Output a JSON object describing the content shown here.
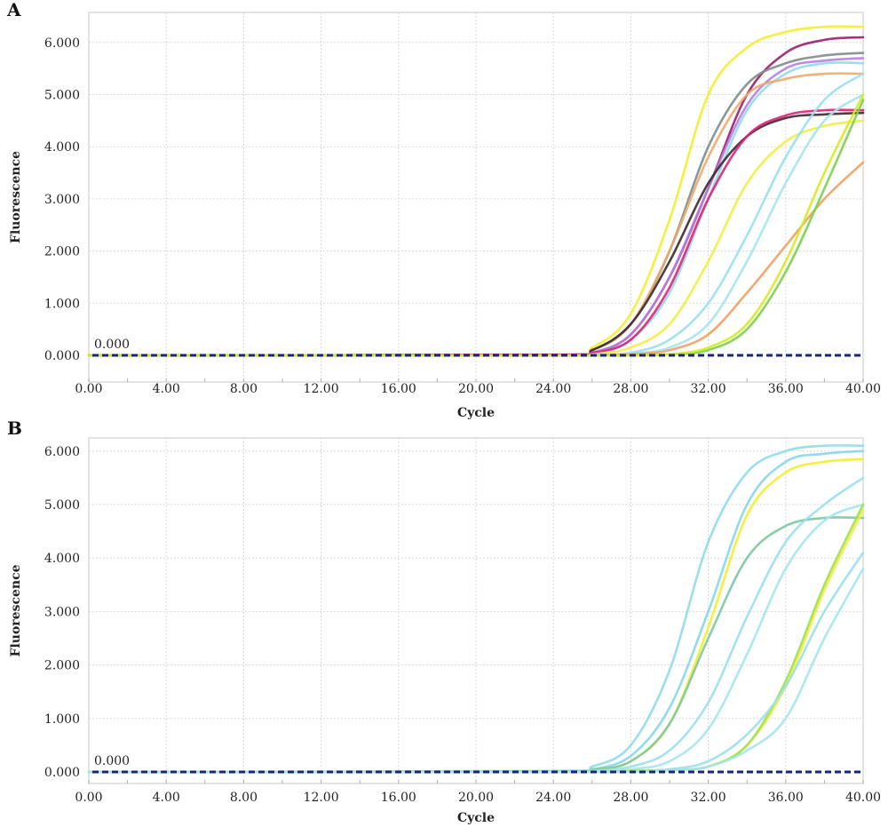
{
  "chart_data": [
    {
      "type": "line",
      "panel_label": "A",
      "xlabel": "Cycle",
      "ylabel": "Fluorescence",
      "xlim": [
        0,
        40
      ],
      "ylim": [
        0,
        6.3
      ],
      "x_ticks": [
        "0.00",
        "4.00",
        "8.00",
        "12.00",
        "16.00",
        "20.00",
        "24.00",
        "28.00",
        "32.00",
        "36.00",
        "40.00"
      ],
      "y_ticks": [
        "0.000",
        "1.000",
        "2.000",
        "3.000",
        "4.000",
        "5.000",
        "6.000"
      ],
      "grid": true,
      "threshold": {
        "value": 0,
        "label": "0.000",
        "color": "#1a237e",
        "style": "dashed"
      },
      "x": [
        0,
        24,
        26,
        28,
        30,
        32,
        34,
        36,
        38,
        40
      ],
      "series": [
        {
          "color": "#f2ee2a",
          "values": [
            0,
            0.02,
            0.15,
            0.8,
            2.6,
            5.0,
            5.9,
            6.2,
            6.3,
            6.3
          ]
        },
        {
          "color": "#9a1f6e",
          "values": [
            0,
            0.01,
            0.05,
            0.4,
            1.5,
            3.2,
            5.0,
            5.8,
            6.05,
            6.1
          ]
        },
        {
          "color": "#7f8c8c",
          "values": [
            0,
            0.01,
            0.1,
            0.6,
            2.0,
            4.0,
            5.2,
            5.6,
            5.75,
            5.8
          ]
        },
        {
          "color": "#b77fe2",
          "values": [
            0,
            0.01,
            0.05,
            0.4,
            1.5,
            3.2,
            4.8,
            5.5,
            5.65,
            5.7
          ]
        },
        {
          "color": "#8fdcea",
          "values": [
            0,
            0.01,
            0.05,
            0.3,
            1.2,
            3.0,
            4.7,
            5.4,
            5.6,
            5.6
          ]
        },
        {
          "color": "#f0a868",
          "values": [
            0,
            0.01,
            0.1,
            0.6,
            2.0,
            3.8,
            5.0,
            5.3,
            5.4,
            5.4
          ]
        },
        {
          "color": "#3a2a2e",
          "values": [
            0,
            0.01,
            0.1,
            0.6,
            1.8,
            3.3,
            4.2,
            4.55,
            4.62,
            4.65
          ]
        },
        {
          "color": "#e0207a",
          "values": [
            0,
            0.01,
            0.05,
            0.3,
            1.3,
            3.0,
            4.2,
            4.6,
            4.7,
            4.7
          ]
        },
        {
          "color": "#eef040",
          "values": [
            0,
            0,
            0.02,
            0.15,
            0.6,
            1.8,
            3.3,
            4.1,
            4.4,
            4.5
          ]
        },
        {
          "color": "#9ae0ec",
          "values": [
            0,
            0,
            0.01,
            0.05,
            0.3,
            1.0,
            2.3,
            3.8,
            4.9,
            5.4
          ]
        },
        {
          "color": "#a4e4ee",
          "values": [
            0,
            0,
            0,
            0.03,
            0.15,
            0.6,
            1.8,
            3.3,
            4.5,
            5.0
          ]
        },
        {
          "color": "#f0a060",
          "values": [
            0,
            0,
            0,
            0.02,
            0.1,
            0.4,
            1.2,
            2.1,
            3.0,
            3.7
          ]
        },
        {
          "color": "#7ad04a",
          "values": [
            0,
            0,
            0,
            0,
            0.02,
            0.1,
            0.5,
            1.6,
            3.2,
            4.9
          ]
        },
        {
          "color": "#d4ec20",
          "values": [
            0,
            0,
            0,
            0,
            0.02,
            0.15,
            0.6,
            1.8,
            3.5,
            5.0
          ]
        }
      ]
    },
    {
      "type": "line",
      "panel_label": "B",
      "xlabel": "Cycle",
      "ylabel": "Fluorescence",
      "xlim": [
        0,
        40
      ],
      "ylim": [
        0,
        6.25
      ],
      "x_ticks": [
        "0.00",
        "4.00",
        "8.00",
        "12.00",
        "16.00",
        "20.00",
        "24.00",
        "28.00",
        "32.00",
        "36.00",
        "40.00"
      ],
      "y_ticks": [
        "0.000",
        "1.000",
        "2.000",
        "3.000",
        "4.000",
        "5.000",
        "6.000"
      ],
      "grid": true,
      "threshold": {
        "value": 0,
        "label": "0.000",
        "color": "#1a237e",
        "style": "dashed"
      },
      "x": [
        0,
        24,
        26,
        28,
        30,
        32,
        34,
        36,
        38,
        40
      ],
      "series": [
        {
          "color": "#8fdcea",
          "values": [
            0,
            0.02,
            0.1,
            0.5,
            1.9,
            4.3,
            5.6,
            6.0,
            6.1,
            6.1
          ]
        },
        {
          "color": "#86d6ee",
          "values": [
            0,
            0.01,
            0.05,
            0.3,
            1.2,
            3.0,
            5.0,
            5.8,
            5.95,
            6.0
          ]
        },
        {
          "color": "#f2ee2a",
          "values": [
            0,
            0.01,
            0.04,
            0.2,
            0.9,
            2.7,
            4.8,
            5.6,
            5.8,
            5.85
          ]
        },
        {
          "color": "#7cc8a0",
          "values": [
            0,
            0.01,
            0.04,
            0.2,
            0.9,
            2.5,
            4.0,
            4.6,
            4.75,
            4.75
          ]
        },
        {
          "color": "#9ae0ec",
          "values": [
            0,
            0,
            0.02,
            0.1,
            0.4,
            1.3,
            2.9,
            4.3,
            5.0,
            5.5
          ]
        },
        {
          "color": "#a4e4ee",
          "values": [
            0,
            0,
            0.01,
            0.05,
            0.2,
            0.8,
            2.2,
            3.8,
            4.7,
            5.0
          ]
        },
        {
          "color": "#eef040",
          "values": [
            0,
            0,
            0,
            0.02,
            0.04,
            0.1,
            0.5,
            1.6,
            3.4,
            4.9
          ]
        },
        {
          "color": "#9ee050",
          "values": [
            0,
            0,
            0,
            0.02,
            0.04,
            0.1,
            0.5,
            1.7,
            3.5,
            5.0
          ]
        },
        {
          "color": "#9ae0ec",
          "values": [
            0,
            0,
            0,
            0.01,
            0.05,
            0.2,
            0.7,
            1.6,
            3.0,
            4.1
          ]
        },
        {
          "color": "#a4e4ee",
          "values": [
            0,
            0,
            0,
            0,
            0.03,
            0.1,
            0.4,
            1.0,
            2.5,
            3.8
          ]
        }
      ]
    }
  ]
}
